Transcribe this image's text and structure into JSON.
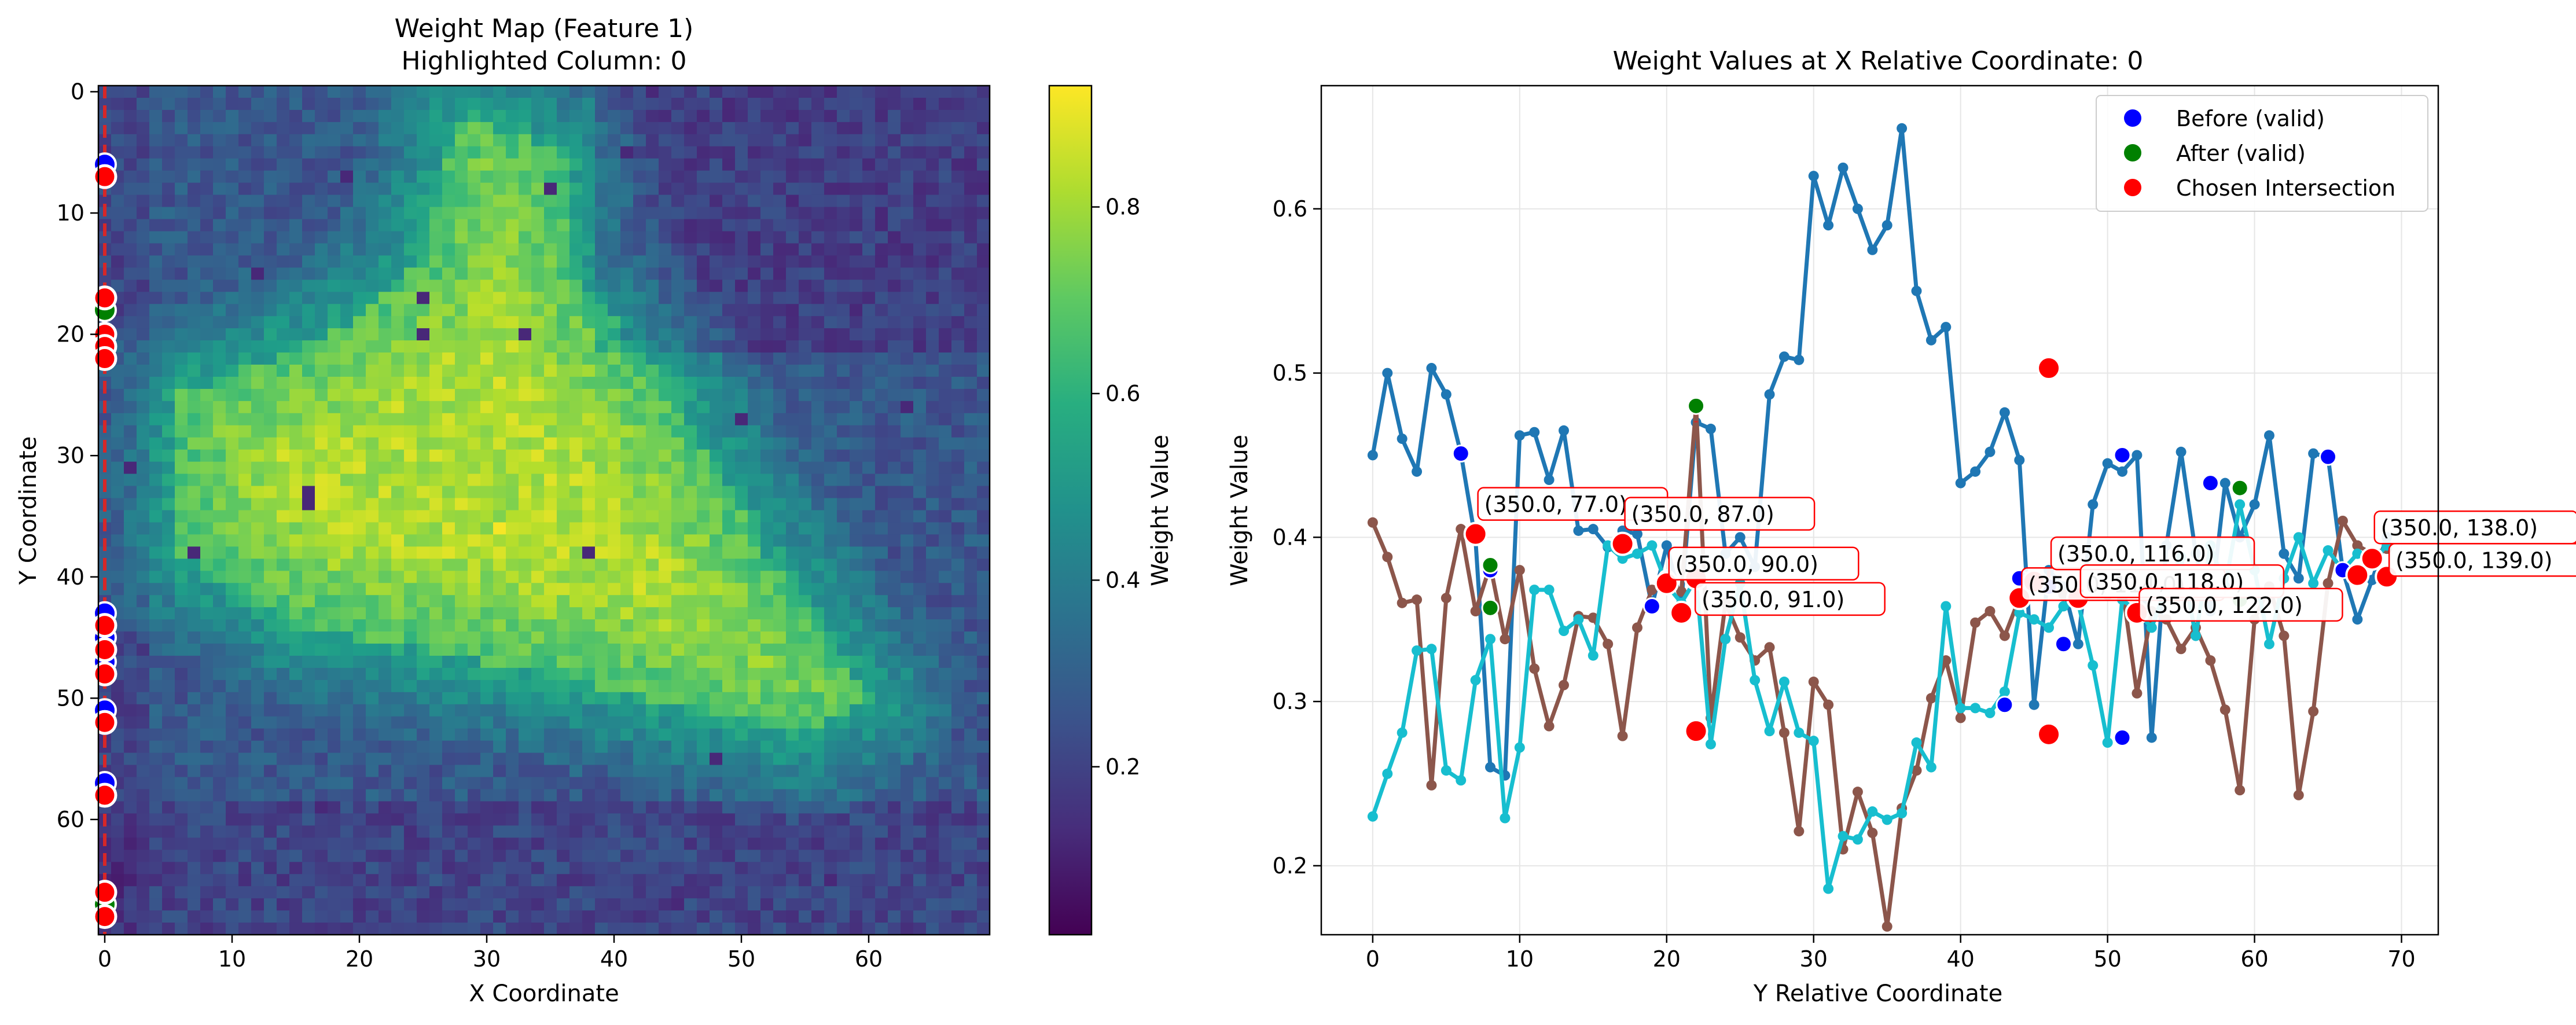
{
  "chart_data": [
    {
      "type": "heatmap",
      "title_line1": "Weight Map (Feature 1)",
      "title_line2": "Highlighted Column: 0",
      "xlabel": "X Coordinate",
      "ylabel": "Y Coordinate",
      "xlim": [
        -0.5,
        69.5
      ],
      "ylim": [
        69.5,
        -0.5
      ],
      "xticks": [
        0,
        10,
        20,
        30,
        40,
        50,
        60
      ],
      "yticks": [
        0,
        10,
        20,
        30,
        40,
        50,
        60
      ],
      "grid_size": 70,
      "colormap": "viridis",
      "colorbar": {
        "label": "Weight Value",
        "range": [
          0.02,
          0.93
        ],
        "ticks": [
          0.2,
          0.4,
          0.6,
          0.8
        ]
      },
      "highlighted_column": 0,
      "highlight_line_color": "#d62728",
      "before_points_y": [
        6,
        17,
        20,
        21,
        43,
        45,
        47,
        51,
        57,
        66,
        68
      ],
      "after_points_y": [
        7,
        18,
        22,
        44,
        46,
        52,
        58,
        67
      ],
      "chosen_points_y": [
        7,
        17,
        20,
        21,
        22,
        44,
        46,
        48,
        52,
        58,
        66,
        68
      ],
      "notable_features": "bright diagonal band from upper-middle to lower-right, dark patches top-right and bottom"
    },
    {
      "type": "line",
      "title": "Weight Values at X Relative Coordinate: 0",
      "xlabel": "Y Relative Coordinate",
      "ylabel": "Weight Value",
      "xlim": [
        -3.5,
        72.5
      ],
      "ylim": [
        0.158,
        0.675
      ],
      "xticks": [
        0,
        10,
        20,
        30,
        40,
        50,
        60,
        70
      ],
      "yticks": [
        0.2,
        0.3,
        0.4,
        0.5,
        0.6
      ],
      "grid": true,
      "legend_position": "upper-right",
      "legend": [
        {
          "label": "Before (valid)",
          "color": "#0000ff"
        },
        {
          "label": "After (valid)",
          "color": "#008000"
        },
        {
          "label": "Chosen Intersection",
          "color": "#ff0000"
        }
      ],
      "series": [
        {
          "color": "#1f77b4",
          "values": [
            0.45,
            0.5,
            0.46,
            0.44,
            0.503,
            0.487,
            0.451,
            0.398,
            0.26,
            0.255,
            0.462,
            0.464,
            0.435,
            0.465,
            0.404,
            0.405,
            0.394,
            0.404,
            0.402,
            0.358,
            0.395,
            0.36,
            0.47,
            0.466,
            0.39,
            0.4,
            0.382,
            0.487,
            0.51,
            0.508,
            0.62,
            0.59,
            0.625,
            0.6,
            0.575,
            0.59,
            0.649,
            0.55,
            0.52,
            0.528,
            0.433,
            0.44,
            0.452,
            0.476,
            0.447,
            0.298,
            0.38,
            0.37,
            0.335,
            0.42,
            0.445,
            0.44,
            0.45,
            0.278,
            0.395,
            0.452,
            0.39,
            0.355,
            0.433,
            0.4,
            0.42,
            0.462,
            0.39,
            0.375,
            0.451,
            0.449,
            0.38,
            0.35,
            0.374,
            0.4
          ]
        },
        {
          "color": "#8c564b",
          "values": [
            0.409,
            0.388,
            0.36,
            0.362,
            0.249,
            0.363,
            0.405,
            0.355,
            0.383,
            0.338,
            0.38,
            0.32,
            0.285,
            0.31,
            0.352,
            0.351,
            0.335,
            0.279,
            0.345,
            0.368,
            0.375,
            0.367,
            0.48,
            0.29,
            0.36,
            0.339,
            0.325,
            0.333,
            0.281,
            0.221,
            0.312,
            0.298,
            0.21,
            0.245,
            0.22,
            0.163,
            0.235,
            0.258,
            0.302,
            0.325,
            0.29,
            0.348,
            0.355,
            0.34,
            0.363,
            0.375,
            0.37,
            0.365,
            0.363,
            0.375,
            0.365,
            0.37,
            0.305,
            0.355,
            0.35,
            0.332,
            0.345,
            0.325,
            0.295,
            0.246,
            0.35,
            0.37,
            0.34,
            0.243,
            0.294,
            0.372,
            0.41,
            0.395,
            0.39,
            0.393
          ]
        },
        {
          "color": "#17becf",
          "values": [
            0.23,
            0.256,
            0.281,
            0.331,
            0.332,
            0.258,
            0.252,
            0.313,
            0.338,
            0.229,
            0.272,
            0.368,
            0.368,
            0.343,
            0.35,
            0.328,
            0.395,
            0.387,
            0.39,
            0.395,
            0.371,
            0.36,
            0.375,
            0.274,
            0.338,
            0.372,
            0.313,
            0.282,
            0.312,
            0.281,
            0.276,
            0.186,
            0.218,
            0.216,
            0.233,
            0.228,
            0.232,
            0.275,
            0.26,
            0.358,
            0.296,
            0.296,
            0.293,
            0.306,
            0.354,
            0.35,
            0.345,
            0.358,
            0.36,
            0.322,
            0.275,
            0.362,
            0.355,
            0.345,
            0.37,
            0.388,
            0.34,
            0.395,
            0.37,
            0.42,
            0.38,
            0.335,
            0.375,
            0.4,
            0.372,
            0.392,
            0.38,
            0.39,
            0.385,
            0.395
          ]
        }
      ],
      "before_points": [
        [
          6,
          0.451
        ],
        [
          8,
          0.38
        ],
        [
          19,
          0.358
        ],
        [
          20,
          0.375
        ],
        [
          43,
          0.298
        ],
        [
          44,
          0.375
        ],
        [
          46,
          0.37
        ],
        [
          47,
          0.335
        ],
        [
          51,
          0.45
        ],
        [
          51,
          0.278
        ],
        [
          57,
          0.433
        ],
        [
          65,
          0.449
        ],
        [
          66,
          0.38
        ]
      ],
      "after_points": [
        [
          8,
          0.357
        ],
        [
          8,
          0.383
        ],
        [
          22,
          0.375
        ],
        [
          22,
          0.48
        ],
        [
          53,
          0.372
        ],
        [
          59,
          0.43
        ],
        [
          59,
          0.362
        ]
      ],
      "chosen_points": [
        [
          7,
          0.402
        ],
        [
          17,
          0.396
        ],
        [
          20,
          0.372
        ],
        [
          21,
          0.354
        ],
        [
          22,
          0.282
        ],
        [
          22,
          0.375
        ],
        [
          44,
          0.363
        ],
        [
          45,
          0.373
        ],
        [
          46,
          0.503
        ],
        [
          46,
          0.28
        ],
        [
          48,
          0.363
        ],
        [
          52,
          0.354
        ],
        [
          67,
          0.377
        ],
        [
          68,
          0.387
        ],
        [
          69,
          0.376
        ]
      ],
      "annotations": [
        {
          "text": "(350.0, 77.0)",
          "x": 7,
          "y": 0.402,
          "offset": [
            0,
            -38
          ]
        },
        {
          "text": "(350.0, 87.0)",
          "x": 17,
          "y": 0.396,
          "offset": [
            0,
            -38
          ]
        },
        {
          "text": "(350.0, 90.0)",
          "x": 20,
          "y": 0.372,
          "offset": [
            0,
            -20
          ]
        },
        {
          "text": "(350.0, 91.0)",
          "x": 21,
          "y": 0.354,
          "offset": [
            20,
            -10
          ]
        },
        {
          "text": "(350.0, 114.0)",
          "x": 44,
          "y": 0.363,
          "offset": [
            0,
            -10
          ]
        },
        {
          "text": "(350.0, 116.0)",
          "x": 46,
          "y": 0.38,
          "offset": [
            0,
            -15
          ]
        },
        {
          "text": "(350.0, 118.0)",
          "x": 48,
          "y": 0.363,
          "offset": [
            0,
            -15
          ]
        },
        {
          "text": "(350.0, 122.0)",
          "x": 52,
          "y": 0.354,
          "offset": [
            0,
            0
          ]
        },
        {
          "text": "(350.0, 139.0)",
          "x": 69,
          "y": 0.376,
          "offset": [
            0,
            -15
          ]
        },
        {
          "text": "(350.0, 138.0)",
          "x": 68,
          "y": 0.387,
          "offset": [
            0,
            -40
          ]
        }
      ]
    }
  ]
}
